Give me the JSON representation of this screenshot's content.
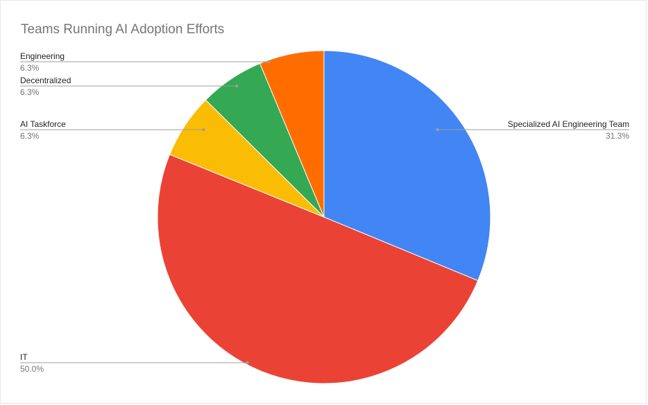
{
  "chart_data": {
    "type": "pie",
    "title": "Teams Running AI Adoption Efforts",
    "slices": [
      {
        "label": "Specialized AI Engineering Team",
        "value": 31.3,
        "pct_label": "31.3%",
        "color": "#4285F4"
      },
      {
        "label": "IT",
        "value": 50.0,
        "pct_label": "50.0%",
        "color": "#EA4335"
      },
      {
        "label": "AI Taskforce",
        "value": 6.3,
        "pct_label": "6.3%",
        "color": "#FBBC04"
      },
      {
        "label": "Decentralized",
        "value": 6.3,
        "pct_label": "6.3%",
        "color": "#34A853"
      },
      {
        "label": "Engineering",
        "value": 6.3,
        "pct_label": "6.3%",
        "color": "#FF6D01"
      }
    ],
    "start_angle_deg": 0,
    "direction": "clockwise",
    "legend": "none",
    "labels": "outside-with-leader-lines"
  }
}
